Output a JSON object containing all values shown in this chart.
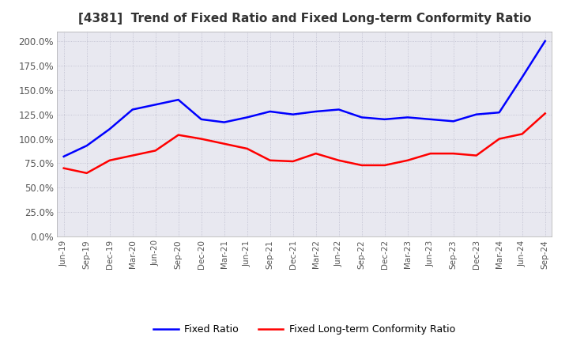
{
  "title": "[4381]  Trend of Fixed Ratio and Fixed Long-term Conformity Ratio",
  "title_fontsize": 11,
  "x_labels": [
    "Jun-19",
    "Sep-19",
    "Dec-19",
    "Mar-20",
    "Jun-20",
    "Sep-20",
    "Dec-20",
    "Mar-21",
    "Jun-21",
    "Sep-21",
    "Dec-21",
    "Mar-22",
    "Jun-22",
    "Sep-22",
    "Dec-22",
    "Mar-23",
    "Jun-23",
    "Sep-23",
    "Dec-23",
    "Mar-24",
    "Jun-24",
    "Sep-24"
  ],
  "fixed_ratio": [
    82,
    93,
    110,
    130,
    135,
    140,
    120,
    117,
    122,
    128,
    125,
    128,
    130,
    122,
    120,
    122,
    120,
    118,
    125,
    127,
    163,
    200
  ],
  "fixed_lt_ratio": [
    70,
    65,
    78,
    83,
    88,
    104,
    100,
    95,
    90,
    78,
    77,
    85,
    78,
    73,
    73,
    78,
    85,
    85,
    83,
    100,
    105,
    126
  ],
  "fixed_ratio_color": "#0000FF",
  "fixed_lt_ratio_color": "#FF0000",
  "ylim": [
    0,
    210
  ],
  "yticks": [
    0,
    25,
    50,
    75,
    100,
    125,
    150,
    175,
    200
  ],
  "grid_color": "#BBBBCC",
  "background_color": "#FFFFFF",
  "plot_bg_color": "#E8E8F0",
  "legend_fixed_ratio": "Fixed Ratio",
  "legend_fixed_lt_ratio": "Fixed Long-term Conformity Ratio"
}
